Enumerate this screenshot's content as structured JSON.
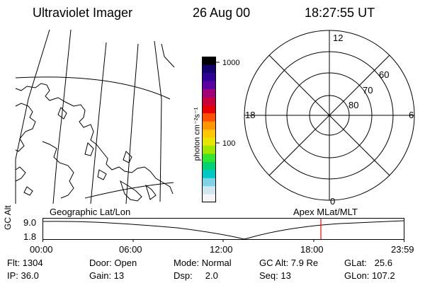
{
  "header": {
    "instrument": "Ultraviolet Imager",
    "date": "26 Aug 00",
    "time": "18:27:55 UT"
  },
  "colorbar": {
    "label": "photon cm⁻²s⁻¹",
    "ticks": [
      "1000",
      "100"
    ],
    "colors": [
      "#000000",
      "#14006e",
      "#2d0096",
      "#5a00a0",
      "#a00078",
      "#c8003c",
      "#e60000",
      "#ff5000",
      "#ff9600",
      "#ffc800",
      "#e6e600",
      "#a0e600",
      "#32e632",
      "#00d278",
      "#00c8c8",
      "#82d2e6",
      "#d2e6f0",
      "#f5f5f5"
    ]
  },
  "polar_plot": {
    "mlt_labels": {
      "top": "12",
      "left": "18",
      "right": "6",
      "bottom": "0"
    },
    "lat_labels": [
      "60",
      "70",
      "80"
    ]
  },
  "timeline": {
    "left_label": "Geographic Lat/Lon",
    "right_label": "Apex MLat/MLT",
    "yaxis_label": "GC Alt",
    "y_top": "9.0",
    "y_bottom": "1.8",
    "x_ticks": [
      "00:00",
      "06:00",
      "12:00",
      "18:00",
      "23:59"
    ],
    "marker_color": "#ff0000"
  },
  "status": {
    "flt": "Flt: 1304",
    "ip": "IP: 36.0",
    "door": "Door: Open",
    "gain": "Gain: 13",
    "mode": "Mode: Normal",
    "dsp": "Dsp:     2.0",
    "gcalt": "GC Alt: 7.9 Re",
    "seq": "Seq: 13",
    "glat": "GLat:   25.6",
    "glon": "GLon: 107.2"
  }
}
